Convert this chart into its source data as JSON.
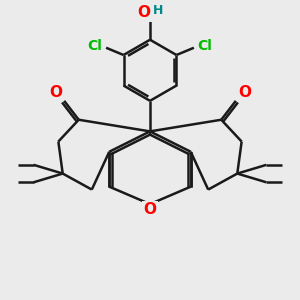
{
  "bg_color": "#ebebeb",
  "bond_color": "#1a1a1a",
  "O_color": "#ff0000",
  "Cl_color": "#00bb00",
  "H_color": "#008888",
  "lw": 1.8,
  "fig_size": [
    3.0,
    3.0
  ],
  "dpi": 100,
  "xlim": [
    0,
    10
  ],
  "ylim": [
    0,
    10
  ]
}
